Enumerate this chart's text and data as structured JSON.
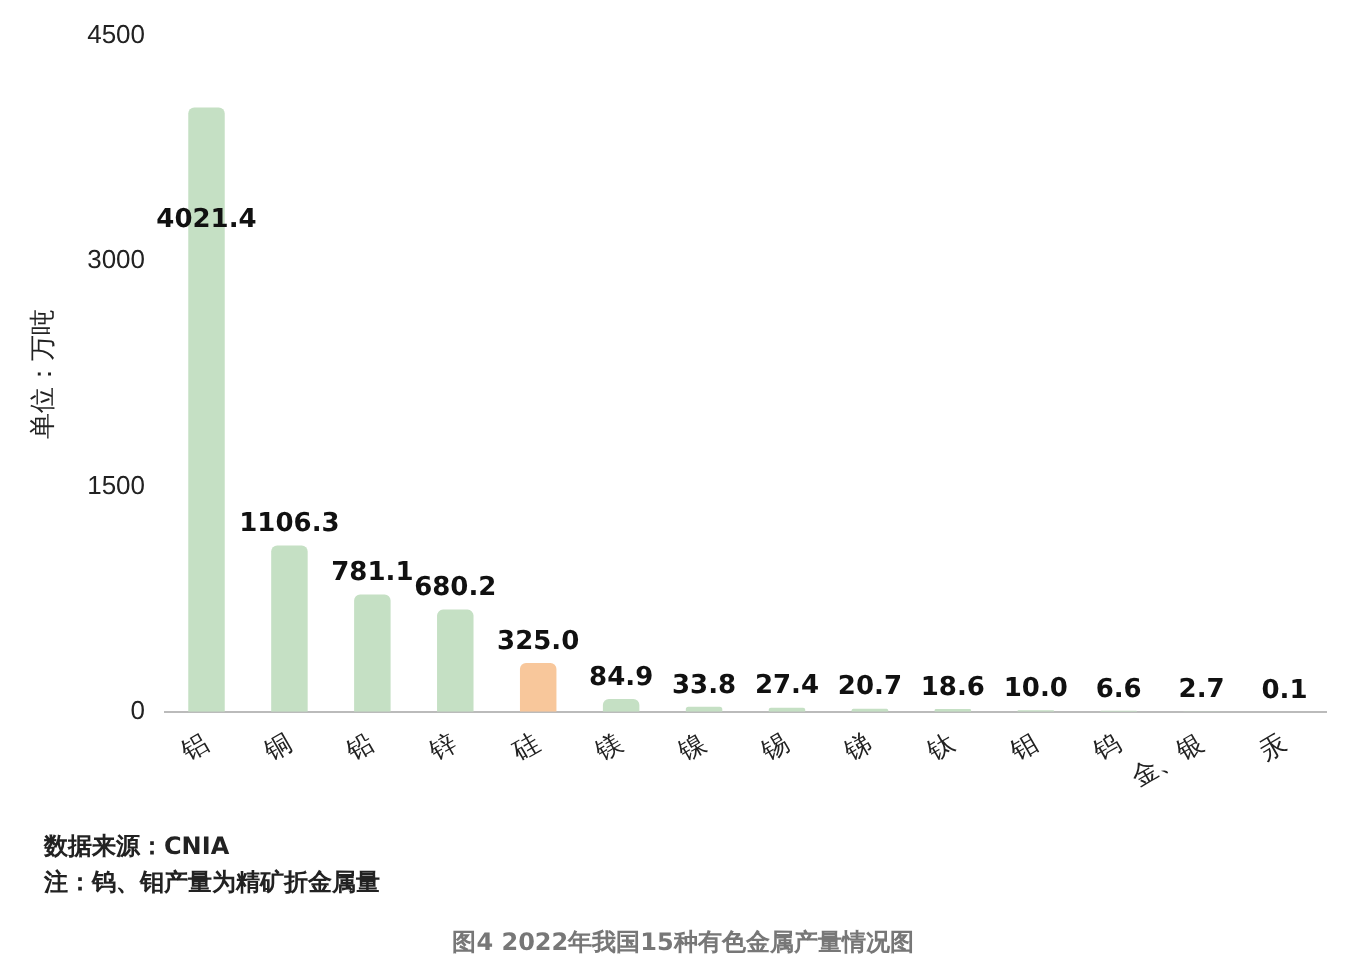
{
  "chart_data": {
    "type": "bar",
    "title": "图4 2022年我国15种有色金属产量情况图",
    "ylabel": "单位：万吨",
    "categories": [
      "铝",
      "铜",
      "铅",
      "锌",
      "硅",
      "镁",
      "镍",
      "锡",
      "锑",
      "钛",
      "钼",
      "钨",
      "金、银",
      "汞"
    ],
    "values": [
      4021.4,
      1106.3,
      781.1,
      680.2,
      325.0,
      84.9,
      33.8,
      27.4,
      20.7,
      18.6,
      10.0,
      6.6,
      2.7,
      0.1
    ],
    "colors": [
      "#c5e0c4",
      "#c5e0c4",
      "#c5e0c4",
      "#c5e0c4",
      "#f8c79b",
      "#c5e0c4",
      "#c5e0c4",
      "#c5e0c4",
      "#c5e0c4",
      "#c5e0c4",
      "#c5e0c4",
      "#c5e0c4",
      "#c5e0c4",
      "#c5e0c4"
    ],
    "value_labels": [
      "4021.4",
      "1106.3",
      "781.1",
      "680.2",
      "325.0",
      "84.9",
      "33.8",
      "27.4",
      "20.7",
      "18.6",
      "10.0",
      "6.6",
      "2.7",
      "0.1"
    ],
    "ylim": [
      0,
      4500
    ],
    "yticks": [
      0,
      1500,
      3000,
      4500
    ],
    "grid": false,
    "legend": false,
    "annotations": [
      "数据来源：CNIA",
      "注：钨、钼产量为精矿折金属量"
    ]
  }
}
